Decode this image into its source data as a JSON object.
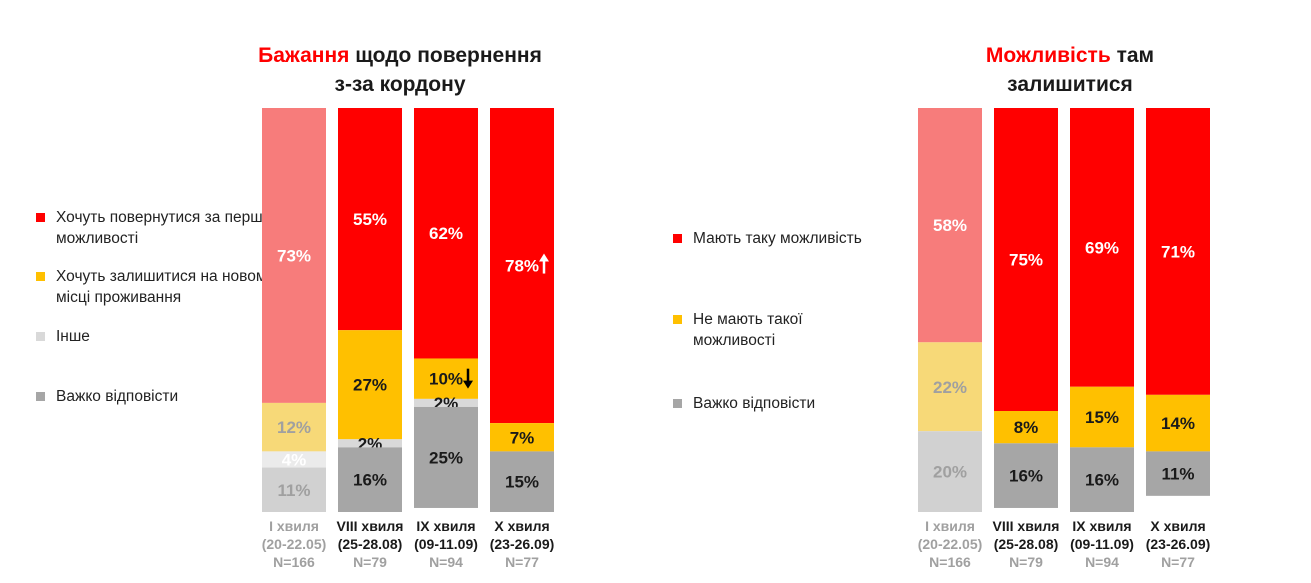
{
  "left_title": {
    "accent": "Бажання",
    "rest_line1": " щодо повернення",
    "line2": "з-за кордону"
  },
  "right_title": {
    "accent": "Можливість",
    "rest_line1": " там",
    "line2": "залишитися"
  },
  "left_legend": [
    {
      "label": "Хочуть повернутися за першої можливості",
      "color": "#ff0000"
    },
    {
      "label": "Хочуть залишитися на новому місці проживання",
      "color": "#ffc000"
    },
    {
      "label": "Інше",
      "color": "#d9d9d9"
    },
    {
      "label": "Важко відповісти",
      "color": "#a6a6a6"
    }
  ],
  "right_legend": [
    {
      "label": "Мають таку можливість",
      "color": "#ff0000"
    },
    {
      "label": "Не мають такої можливості",
      "color": "#ffc000"
    },
    {
      "label": "Важко відповісти",
      "color": "#a6a6a6"
    }
  ],
  "colors": {
    "red": "#ff0000",
    "yellow": "#ffc000",
    "light_gray": "#d9d9d9",
    "dark_gray": "#a6a6a6",
    "faded_red": "#f77c7b",
    "faded_yellow": "#f7d978",
    "faded_light_gray": "#ebebeb",
    "faded_dark_gray": "#d1d1d1",
    "faded_text": "#a0a0a0",
    "text": "#1a1a1a"
  },
  "chart_data": [
    {
      "type": "bar",
      "stacked": true,
      "title": "Бажання щодо повернення з-за кордону",
      "categories": [
        {
          "name": "І хвиля",
          "dates": "(20-22.05)",
          "n": "N=166",
          "faded": true
        },
        {
          "name": "VIII хвиля",
          "dates": "(25-28.08)",
          "n": "N=79",
          "faded": false
        },
        {
          "name": "IX хвиля",
          "dates": "(09-11.09)",
          "n": "N=94",
          "faded": false
        },
        {
          "name": "X хвиля",
          "dates": "(23-26.09)",
          "n": "N=77",
          "faded": false
        }
      ],
      "series": [
        {
          "name": "Хочуть повернутися за першої можливості",
          "values": [
            73,
            55,
            62,
            78
          ],
          "labels": [
            "73%",
            "55%",
            "62%",
            "78%"
          ]
        },
        {
          "name": "Хочуть залишитися на новому місці проживання",
          "values": [
            12,
            27,
            10,
            7
          ],
          "labels": [
            "12%",
            "27%",
            "10%",
            "7%"
          ]
        },
        {
          "name": "Інше",
          "values": [
            4,
            2,
            2,
            0
          ],
          "labels": [
            "4%",
            "2%",
            "2%",
            ""
          ]
        },
        {
          "name": "Важко відповісти",
          "values": [
            11,
            16,
            25,
            15
          ],
          "labels": [
            "11%",
            "16%",
            "25%",
            "15%"
          ]
        }
      ],
      "annotations": [
        {
          "category": "X хвиля",
          "series": "Хочуть повернутися за першої можливості",
          "arrow": "up"
        },
        {
          "category": "IX хвиля",
          "series": "Хочуть залишитися на новому місці проживання",
          "arrow": "down"
        }
      ],
      "ylim": [
        0,
        100
      ]
    },
    {
      "type": "bar",
      "stacked": true,
      "title": "Можливість там залишитися",
      "categories": [
        {
          "name": "І хвиля",
          "dates": "(20-22.05)",
          "n": "N=166",
          "faded": true
        },
        {
          "name": "VIII хвиля",
          "dates": "(25-28.08)",
          "n": "N=79",
          "faded": false
        },
        {
          "name": "IX хвиля",
          "dates": "(09-11.09)",
          "n": "N=94",
          "faded": false
        },
        {
          "name": "X хвиля",
          "dates": "(23-26.09)",
          "n": "N=77",
          "faded": false
        }
      ],
      "series": [
        {
          "name": "Мають таку можливість",
          "values": [
            58,
            75,
            69,
            71
          ],
          "labels": [
            "58%",
            "75%",
            "69%",
            "71%"
          ]
        },
        {
          "name": "Не мають такої можливості",
          "values": [
            22,
            8,
            15,
            14
          ],
          "labels": [
            "22%",
            "8%",
            "15%",
            "14%"
          ]
        },
        {
          "name": "Важко відповісти",
          "values": [
            20,
            16,
            16,
            11
          ],
          "labels": [
            "20%",
            "16%",
            "16%",
            "11%"
          ]
        }
      ],
      "annotations": [],
      "ylim": [
        0,
        100
      ]
    }
  ]
}
